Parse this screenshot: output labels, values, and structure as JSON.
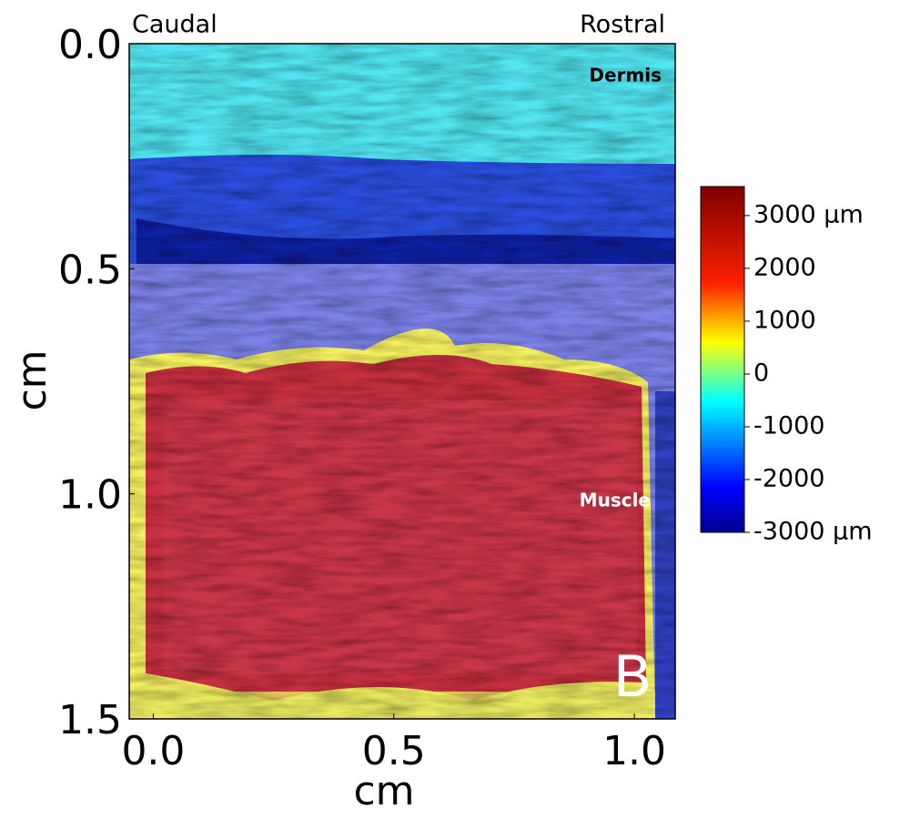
{
  "chart_data": {
    "type": "heatmap",
    "corner_labels": [
      "Caudal",
      "Rostral"
    ],
    "annotations": [
      "Dermis",
      "Muscle"
    ],
    "panel_label": "B",
    "x_label": "cm",
    "y_label": "cm",
    "xlim": [
      -0.05,
      1.085
    ],
    "xticks": [
      {
        "value": 0,
        "label": "0.0"
      },
      0.5,
      {
        "value": 1,
        "label": "1.0"
      }
    ],
    "ylim": [
      0,
      1.5
    ],
    "yticks": [
      {
        "value": 0,
        "label": "0.0"
      },
      0.5,
      {
        "value": 1,
        "label": "1.0"
      },
      1.5
    ],
    "y_inverted": true,
    "colorbar_lim": [
      -3000,
      3550
    ],
    "colorbar_ticks": [
      {
        "value": 3000,
        "label": "3000 μm"
      },
      2000,
      1000,
      0,
      -1000,
      -2000,
      {
        "value": -3000,
        "label": "-3000 μm"
      }
    ],
    "colormap": "jet"
  }
}
